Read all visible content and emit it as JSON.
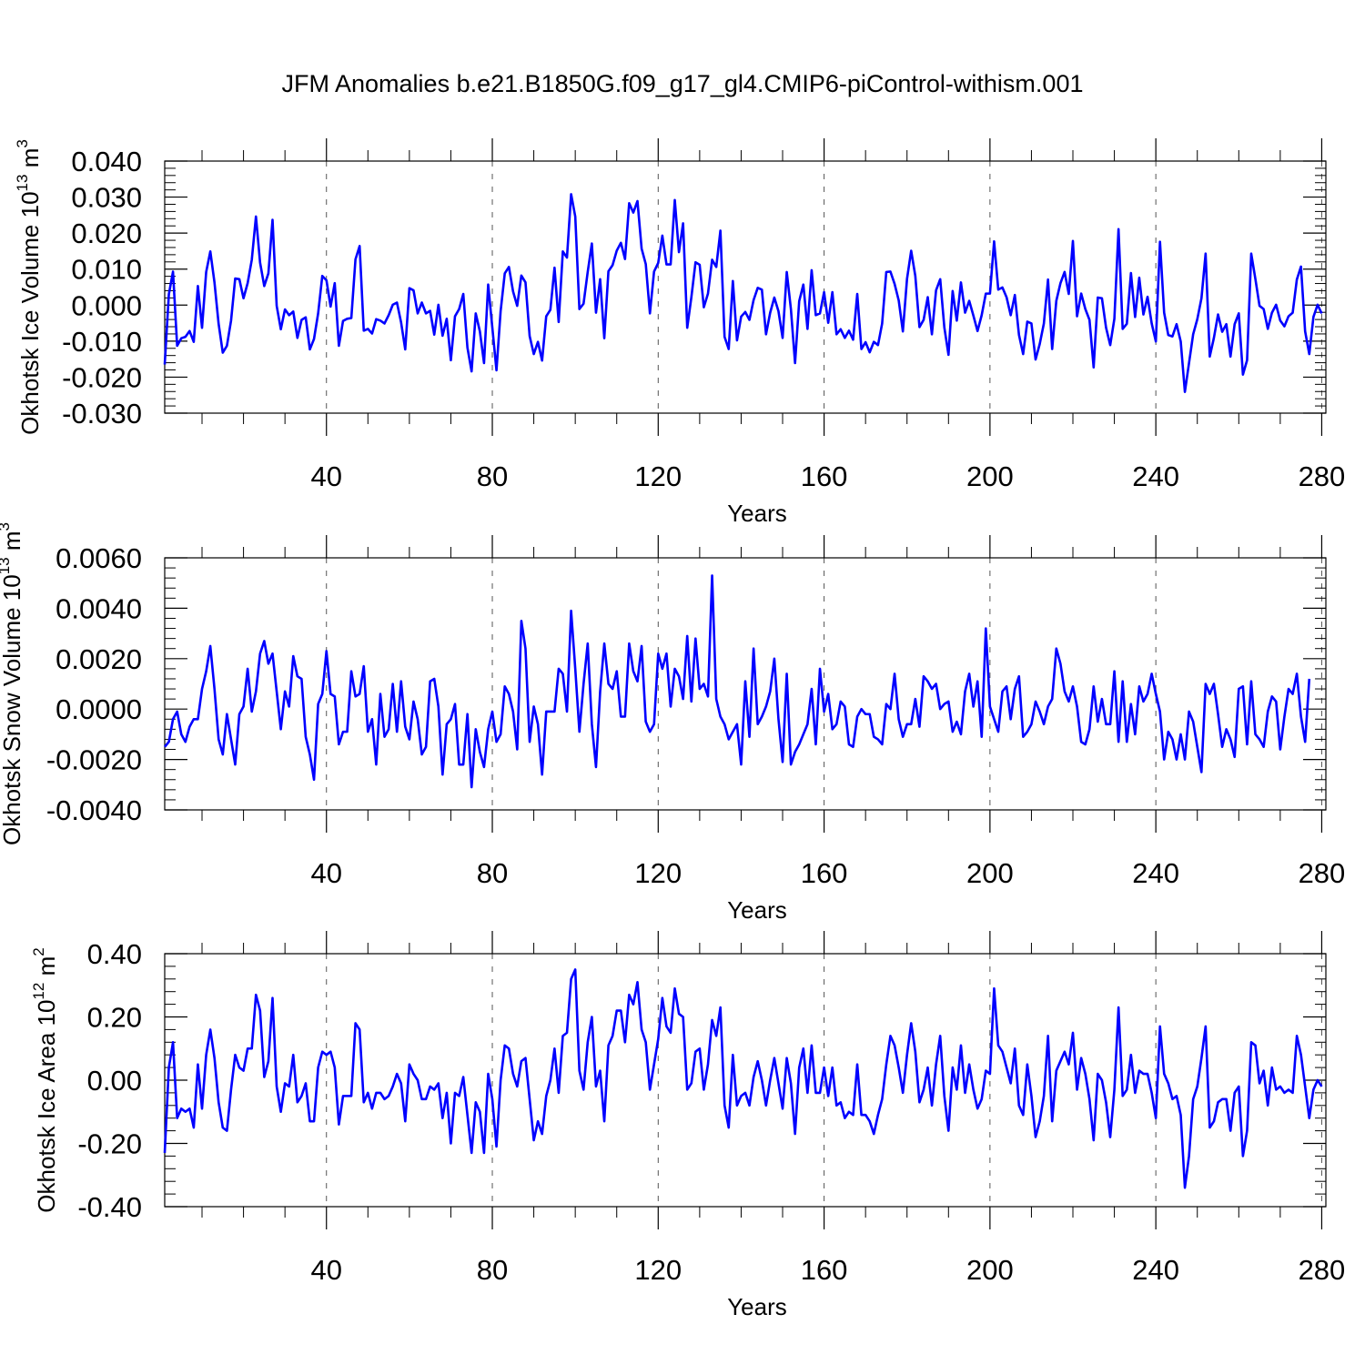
{
  "figure": {
    "title": "JFM Anomalies b.e21.B1850G.f09_g17_gl4.CMIP6-piControl-withism.001"
  },
  "chart_data": [
    {
      "type": "line",
      "ylabel": "Okhotsk Ice Volume 10",
      "ylabel_exp": "13",
      "ylabel_unit": " m",
      "ylabel_unit_exp": "3",
      "xlabel": "Years",
      "xlim": [
        1,
        281
      ],
      "ylim": [
        -0.03,
        0.04
      ],
      "xticks": [
        40,
        80,
        120,
        160,
        200,
        240,
        280
      ],
      "yticks": [
        0.04,
        0.03,
        0.02,
        0.01,
        0.0,
        -0.01,
        -0.02,
        -0.03
      ],
      "yticks_labels": [
        "0.040",
        "0.030",
        "0.020",
        "0.010",
        "0.000",
        "-0.010",
        "-0.020",
        "-0.030"
      ],
      "grid": "dashed vertical lines at major x ticks",
      "color": "#0000ff",
      "series": [
        {
          "values": [
            -0.0165,
            0.003,
            0.0093,
            -0.0113,
            -0.0092,
            -0.0088,
            -0.0072,
            -0.0102,
            0.0053,
            -0.0063,
            0.0092,
            0.0149,
            0.0063,
            -0.0052,
            -0.0132,
            -0.0113,
            -0.0043,
            0.0074,
            0.0072,
            0.0019,
            0.0061,
            0.0126,
            0.0246,
            0.0118,
            0.0053,
            0.0088,
            0.0237,
            -0.0002,
            -0.0067,
            -0.0012,
            -0.0028,
            -0.0018,
            -0.0091,
            -0.0041,
            -0.0034,
            -0.0123,
            -0.0094,
            -0.0023,
            0.0081,
            0.0069,
            -0.0004,
            0.0061,
            -0.0113,
            -0.0044,
            -0.0038,
            -0.0036,
            0.0127,
            0.0164,
            -0.0071,
            -0.0066,
            -0.0079,
            -0.0039,
            -0.0043,
            -0.0051,
            -0.0028,
            0.0001,
            0.0007,
            -0.0048,
            -0.0123,
            0.0047,
            0.0041,
            -0.0023,
            0.0007,
            -0.0023,
            -0.0016,
            -0.0082,
            0.0001,
            -0.0085,
            -0.0038,
            -0.0153,
            -0.0031,
            -0.0011,
            0.0031,
            -0.0118,
            -0.0184,
            -0.0023,
            -0.0073,
            -0.0161,
            0.0057,
            -0.0062,
            -0.0181,
            -0.0017,
            0.0088,
            0.0106,
            0.0038,
            -0.0002,
            0.0082,
            0.0063,
            -0.0086,
            -0.0136,
            -0.0102,
            -0.0154,
            -0.0031,
            -0.0013,
            0.0104,
            -0.0047,
            0.0149,
            0.0132,
            0.0308,
            0.0246,
            -0.0011,
            0.0004,
            0.0092,
            0.0171,
            -0.0021,
            0.0072,
            -0.0092,
            0.0094,
            0.0111,
            0.0151,
            0.0173,
            0.0128,
            0.0283,
            0.0257,
            0.0289,
            0.0157,
            0.0114,
            -0.0023,
            0.0093,
            0.0117,
            0.0193,
            0.0113,
            0.0113,
            0.0292,
            0.0147,
            0.0227,
            -0.0063,
            0.0022,
            0.0119,
            0.0112,
            -0.0006,
            0.0032,
            0.0126,
            0.0106,
            0.0207,
            -0.0088,
            -0.0122,
            0.0067,
            -0.0098,
            -0.0032,
            -0.0019,
            -0.0041,
            0.0014,
            0.0048,
            0.0043,
            -0.0081,
            -0.0021,
            0.0021,
            -0.0017,
            -0.0091,
            0.0092,
            -0.0011,
            -0.0161,
            0.0011,
            0.0057,
            -0.0066,
            0.0097,
            -0.0028,
            -0.0023,
            0.0036,
            -0.0049,
            0.0036,
            -0.0081,
            -0.0067,
            -0.0091,
            -0.0071,
            -0.0096,
            0.0031,
            -0.0122,
            -0.0103,
            -0.0131,
            -0.0102,
            -0.0111,
            -0.0051,
            0.0092,
            0.0093,
            0.0059,
            0.0013,
            -0.0073,
            0.0073,
            0.0151,
            0.0081,
            -0.0061,
            -0.0041,
            0.0022,
            -0.0081,
            0.0041,
            0.0072,
            -0.0062,
            -0.0138,
            0.0039,
            -0.0043,
            0.0063,
            -0.0021,
            0.0012,
            -0.0029,
            -0.0072,
            -0.0028,
            0.0032,
            0.0032,
            0.0177,
            0.0043,
            0.0049,
            0.0022,
            -0.0028,
            0.0028,
            -0.0083,
            -0.0136,
            -0.0046,
            -0.0051,
            -0.0151,
            -0.0108,
            -0.0051,
            0.0071,
            -0.0122,
            0.0012,
            0.0061,
            0.0092,
            0.0031,
            0.0178,
            -0.0031,
            0.0032,
            -0.0011,
            -0.0041,
            -0.0173,
            0.0021,
            0.0019,
            -0.0063,
            -0.0111,
            -0.0038,
            0.0211,
            -0.0066,
            -0.0052,
            0.0089,
            -0.0033,
            0.0076,
            -0.0026,
            0.0023,
            -0.0051,
            -0.0101,
            0.0176,
            -0.0021,
            -0.0083,
            -0.0087,
            -0.0053,
            -0.0101,
            -0.0241,
            -0.0161,
            -0.0081,
            -0.0039,
            0.0019,
            0.0143,
            -0.0143,
            -0.0091,
            -0.0026,
            -0.0074,
            -0.0053,
            -0.0143,
            -0.0053,
            -0.0023,
            -0.0193,
            -0.0153,
            0.0143,
            0.0073,
            -0.0002,
            -0.0011,
            -0.0066,
            -0.0021,
            0.0001,
            -0.0043,
            -0.0059,
            -0.0031,
            -0.0021,
            0.0071,
            0.0107,
            -0.0073,
            -0.0136,
            -0.0033,
            0.0001,
            -0.0023
          ]
        }
      ]
    },
    {
      "type": "line",
      "ylabel": "Okhotsk Snow Volume 10",
      "ylabel_exp": "13",
      "ylabel_unit": " m",
      "ylabel_unit_exp": "3",
      "xlabel": "Years",
      "xlim": [
        1,
        281
      ],
      "ylim": [
        -0.004,
        0.006
      ],
      "xticks": [
        40,
        80,
        120,
        160,
        200,
        240,
        280
      ],
      "yticks": [
        0.006,
        0.004,
        0.002,
        0.0,
        -0.002,
        -0.004
      ],
      "yticks_labels": [
        "0.0060",
        "0.0040",
        "0.0020",
        "0.0000",
        "-0.0020",
        "-0.0040"
      ],
      "grid": "dashed vertical lines at major x ticks",
      "color": "#0000ff",
      "series": [
        {
          "values": [
            -0.0015,
            -0.0013,
            -0.0004,
            -0.0001,
            -0.001,
            -0.0013,
            -0.0007,
            -0.0004,
            -0.0004,
            0.0008,
            0.0015,
            0.0025,
            0.0008,
            -0.0012,
            -0.0018,
            -0.0002,
            -0.0012,
            -0.0022,
            -0.0002,
            0.0001,
            0.0016,
            -0.0001,
            0.0007,
            0.0022,
            0.0027,
            0.0018,
            0.0022,
            0.0007,
            -0.0008,
            0.0007,
            0.0001,
            0.0021,
            0.0013,
            0.0012,
            -0.0011,
            -0.0018,
            -0.0028,
            0.0002,
            0.0006,
            0.0023,
            0.0006,
            0.0005,
            -0.0014,
            -0.0009,
            -0.0009,
            0.0015,
            0.0005,
            0.0006,
            0.0017,
            -0.0009,
            -0.0004,
            -0.0022,
            0.0006,
            -0.0011,
            -0.0008,
            0.001,
            -0.0009,
            0.0011,
            -0.0007,
            -0.0012,
            0.0003,
            -0.0004,
            -0.0018,
            -0.0015,
            0.0011,
            0.0012,
            0.0001,
            -0.0026,
            -0.0006,
            -0.0004,
            0.0002,
            -0.0022,
            -0.0022,
            -0.0002,
            -0.0031,
            -0.0008,
            -0.0017,
            -0.0023,
            -0.0008,
            -0.0001,
            -0.0013,
            -0.001,
            0.0009,
            0.0006,
            -0.0001,
            -0.0016,
            0.0035,
            0.0024,
            -0.0013,
            0.0001,
            -0.0006,
            -0.0026,
            -0.0001,
            -0.0001,
            -0.0001,
            0.0016,
            0.0014,
            -0.0001,
            0.0039,
            0.0016,
            -0.0009,
            0.001,
            0.0026,
            -0.0006,
            -0.0023,
            0.0007,
            0.0026,
            0.001,
            0.0008,
            0.0015,
            -0.0003,
            -0.0003,
            0.0026,
            0.0015,
            0.0011,
            0.0025,
            -0.0005,
            -0.0009,
            -0.0006,
            0.0022,
            0.0016,
            0.0022,
            0.0001,
            0.0016,
            0.0013,
            0.0004,
            0.0029,
            0.0003,
            0.0028,
            0.0008,
            0.001,
            0.0005,
            0.0053,
            0.0004,
            -0.0003,
            -0.0006,
            -0.0012,
            -0.0009,
            -0.0006,
            -0.0022,
            0.0011,
            -0.0011,
            0.0024,
            -0.0006,
            -0.0003,
            0.0001,
            0.0007,
            0.002,
            -0.0004,
            -0.0021,
            0.0014,
            -0.0022,
            -0.0017,
            -0.0014,
            -0.001,
            -0.0006,
            0.0008,
            -0.0014,
            0.0016,
            -0.0001,
            0.0006,
            -0.0008,
            -0.0006,
            0.0003,
            0.0001,
            -0.0014,
            -0.0015,
            -0.0003,
            0.0,
            -0.0002,
            -0.0002,
            -0.0011,
            -0.0012,
            -0.0014,
            0.0002,
            0.0,
            0.0014,
            -0.0004,
            -0.0011,
            -0.0006,
            -0.0006,
            0.0004,
            -0.0007,
            0.0013,
            0.0011,
            0.0008,
            0.001,
            0.0,
            0.0002,
            0.0003,
            -0.0009,
            -0.0005,
            -0.001,
            0.0007,
            0.0014,
            0.0001,
            0.0011,
            -0.0011,
            0.0032,
            0.0001,
            -0.0004,
            -0.0009,
            0.0007,
            0.0009,
            -0.0004,
            0.0008,
            0.0013,
            -0.0011,
            -0.0009,
            -0.0006,
            0.0003,
            -0.0001,
            -0.0006,
            0.0001,
            0.0004,
            0.0024,
            0.0018,
            0.0007,
            0.0003,
            0.0009,
            0.0001,
            -0.0013,
            -0.0014,
            -0.0008,
            0.0009,
            -0.0005,
            0.0004,
            -0.0006,
            -0.0006,
            0.0015,
            -0.0013,
            0.0011,
            -0.0013,
            0.0002,
            -0.001,
            0.0009,
            0.0003,
            0.0006,
            0.0014,
            0.0006,
            -0.0001,
            -0.002,
            -0.0009,
            -0.0012,
            -0.002,
            -0.001,
            -0.002,
            -0.0001,
            -0.0005,
            -0.0015,
            -0.0025,
            0.001,
            0.0006,
            0.001,
            -0.0002,
            -0.0015,
            -0.0008,
            -0.0012,
            -0.0019,
            0.0008,
            0.0009,
            -0.0014,
            0.0011,
            -0.001,
            -0.0012,
            -0.0015,
            -0.0001,
            0.0005,
            0.0003,
            -0.0016,
            -0.0003,
            0.0008,
            0.0006,
            0.0014,
            -0.0003,
            -0.0013,
            0.0012
          ]
        }
      ]
    },
    {
      "type": "line",
      "ylabel": "Okhotsk Ice Area 10",
      "ylabel_exp": "12",
      "ylabel_unit": " m",
      "ylabel_unit_exp": "2",
      "xlabel": "Years",
      "xlim": [
        1,
        281
      ],
      "ylim": [
        -0.4,
        0.4
      ],
      "xticks": [
        40,
        80,
        120,
        160,
        200,
        240,
        280
      ],
      "yticks": [
        0.4,
        0.2,
        0.0,
        -0.2,
        -0.4
      ],
      "yticks_labels": [
        "0.40",
        "0.20",
        "0.00",
        "-0.20",
        "-0.40"
      ],
      "grid": "dashed vertical lines at major x ticks",
      "color": "#0000ff",
      "series": [
        {
          "values": [
            -0.23,
            0.04,
            0.12,
            -0.12,
            -0.09,
            -0.1,
            -0.09,
            -0.15,
            0.05,
            -0.09,
            0.08,
            0.16,
            0.07,
            -0.07,
            -0.15,
            -0.16,
            -0.03,
            0.08,
            0.04,
            0.03,
            0.1,
            0.1,
            0.27,
            0.22,
            0.01,
            0.06,
            0.26,
            -0.02,
            -0.1,
            -0.01,
            -0.02,
            0.08,
            -0.07,
            -0.05,
            -0.01,
            -0.13,
            -0.13,
            0.04,
            0.09,
            0.08,
            0.09,
            0.04,
            -0.14,
            -0.05,
            -0.05,
            -0.05,
            0.18,
            0.16,
            -0.07,
            -0.04,
            -0.09,
            -0.04,
            -0.04,
            -0.06,
            -0.05,
            -0.02,
            0.02,
            -0.01,
            -0.13,
            0.05,
            0.02,
            0.0,
            -0.06,
            -0.06,
            -0.02,
            -0.03,
            -0.01,
            -0.12,
            -0.04,
            -0.2,
            -0.04,
            -0.05,
            0.01,
            -0.11,
            -0.23,
            -0.07,
            -0.1,
            -0.23,
            0.02,
            -0.06,
            -0.21,
            0.0,
            0.11,
            0.1,
            0.02,
            -0.02,
            0.06,
            0.07,
            -0.06,
            -0.19,
            -0.13,
            -0.17,
            -0.05,
            0.0,
            0.1,
            -0.04,
            0.14,
            0.15,
            0.32,
            0.35,
            0.03,
            -0.03,
            0.12,
            0.2,
            -0.02,
            0.03,
            -0.13,
            0.11,
            0.14,
            0.22,
            0.22,
            0.12,
            0.27,
            0.24,
            0.31,
            0.16,
            0.12,
            -0.03,
            0.05,
            0.13,
            0.26,
            0.17,
            0.15,
            0.29,
            0.21,
            0.2,
            -0.03,
            -0.01,
            0.09,
            0.1,
            -0.03,
            0.05,
            0.19,
            0.14,
            0.23,
            -0.08,
            -0.15,
            0.08,
            -0.08,
            -0.05,
            -0.04,
            -0.08,
            0.01,
            0.06,
            0.0,
            -0.08,
            0.0,
            0.07,
            -0.01,
            -0.09,
            0.07,
            -0.01,
            -0.17,
            0.04,
            0.1,
            -0.04,
            0.11,
            -0.04,
            -0.04,
            0.04,
            -0.05,
            0.04,
            -0.08,
            -0.07,
            -0.12,
            -0.1,
            -0.11,
            0.05,
            -0.11,
            -0.11,
            -0.13,
            -0.17,
            -0.11,
            -0.06,
            0.05,
            0.14,
            0.11,
            0.04,
            -0.04,
            0.08,
            0.18,
            0.09,
            -0.07,
            -0.03,
            0.04,
            -0.08,
            0.05,
            0.14,
            -0.05,
            -0.16,
            0.04,
            -0.03,
            0.11,
            -0.04,
            0.05,
            -0.03,
            -0.09,
            -0.06,
            0.03,
            0.02,
            0.29,
            0.11,
            0.09,
            0.04,
            -0.01,
            0.1,
            -0.08,
            -0.11,
            0.05,
            -0.05,
            -0.18,
            -0.13,
            -0.05,
            0.14,
            -0.13,
            0.03,
            0.06,
            0.09,
            0.05,
            0.15,
            -0.03,
            0.07,
            0.02,
            -0.06,
            -0.19,
            0.02,
            0.0,
            -0.07,
            -0.18,
            -0.03,
            0.23,
            -0.05,
            -0.03,
            0.08,
            -0.04,
            0.03,
            0.02,
            0.02,
            -0.04,
            -0.12,
            0.17,
            0.02,
            -0.01,
            -0.06,
            -0.05,
            -0.11,
            -0.34,
            -0.24,
            -0.06,
            -0.02,
            0.07,
            0.17,
            -0.15,
            -0.13,
            -0.07,
            -0.06,
            -0.06,
            -0.16,
            -0.04,
            -0.02,
            -0.24,
            -0.16,
            0.12,
            0.11,
            -0.01,
            0.03,
            -0.08,
            0.04,
            -0.03,
            -0.02,
            -0.04,
            -0.03,
            -0.04,
            0.14,
            0.08,
            -0.02,
            -0.12,
            -0.03,
            0.0,
            -0.02
          ]
        }
      ]
    }
  ]
}
